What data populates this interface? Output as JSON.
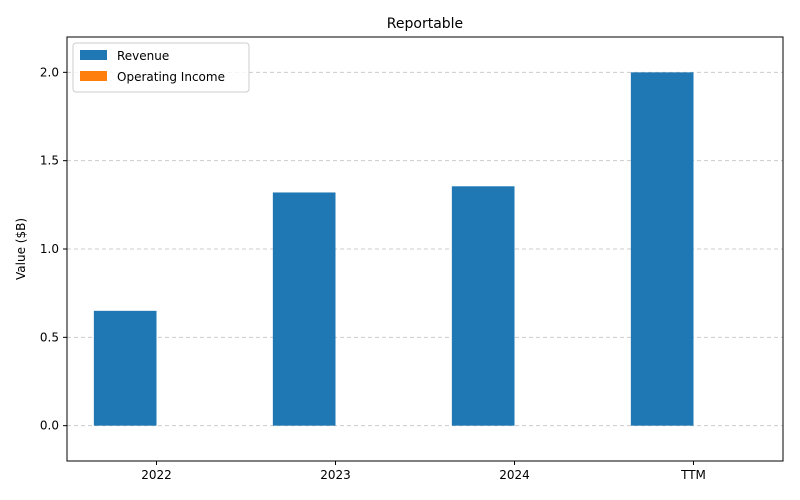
{
  "chart_data": {
    "type": "bar",
    "title": "Reportable",
    "xlabel": "",
    "ylabel": "Value ($B)",
    "categories": [
      "2022",
      "2023",
      "2024",
      "TTM"
    ],
    "series": [
      {
        "name": "Revenue",
        "values": [
          0.65,
          1.32,
          1.355,
          2.0
        ],
        "color": "#1f77b4"
      },
      {
        "name": "Operating Income",
        "values": [
          0,
          0,
          0,
          0
        ],
        "color": "#ff7f0e"
      }
    ],
    "ylim": [
      -0.2,
      2.2
    ],
    "yticks": [
      0.0,
      0.5,
      1.0,
      1.5,
      2.0
    ],
    "ytick_labels": [
      "0.0",
      "0.5",
      "1.0",
      "1.5",
      "2.0"
    ],
    "grid": true,
    "grid_axis": "y",
    "legend_position": "top-left"
  }
}
